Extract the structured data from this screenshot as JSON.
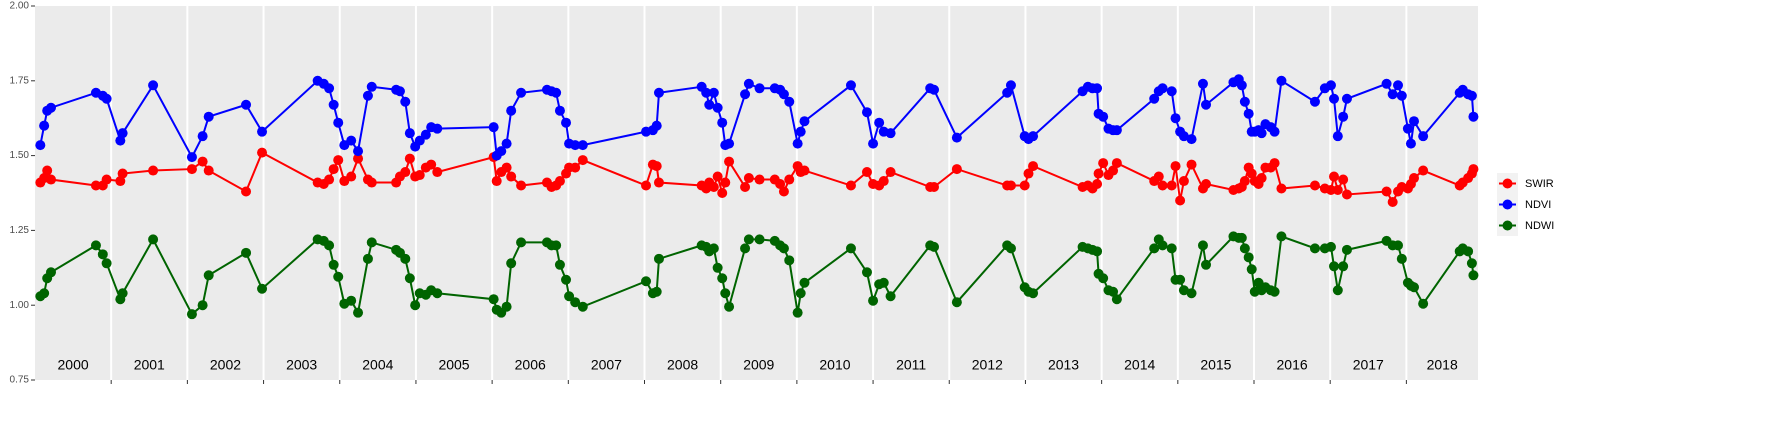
{
  "chart_data": {
    "type": "line",
    "x": [
      2000.07,
      2000.12,
      2000.16,
      2000.21,
      2000.8,
      2000.89,
      2000.94,
      2001.12,
      2001.15,
      2001.55,
      2002.06,
      2002.2,
      2002.28,
      2002.77,
      2002.98,
      2003.71,
      2003.79,
      2003.86,
      2003.92,
      2003.98,
      2004.06,
      2004.15,
      2004.24,
      2004.37,
      2004.42,
      2004.74,
      2004.79,
      2004.86,
      2004.92,
      2004.99,
      2005.05,
      2005.13,
      2005.2,
      2005.28,
      2006.02,
      2006.06,
      2006.12,
      2006.19,
      2006.25,
      2006.38,
      2006.72,
      2006.78,
      2006.84,
      2006.89,
      2006.97,
      2007.01,
      2007.09,
      2007.19,
      2008.02,
      2008.11,
      2008.16,
      2008.19,
      2008.75,
      2008.81,
      2008.85,
      2008.91,
      2008.96,
      2009.02,
      2009.06,
      2009.11,
      2009.32,
      2009.37,
      2009.51,
      2009.71,
      2009.78,
      2009.83,
      2009.9,
      2010.01,
      2010.05,
      2010.1,
      2010.71,
      2010.92,
      2011,
      2011.08,
      2011.14,
      2011.23,
      2011.75,
      2011.8,
      2012.1,
      2012.76,
      2012.81,
      2012.99,
      2013.04,
      2013.1,
      2013.75,
      2013.82,
      2013.88,
      2013.94,
      2013.96,
      2014.02,
      2014.09,
      2014.15,
      2014.2,
      2014.69,
      2014.75,
      2014.8,
      2014.92,
      2014.97,
      2015.03,
      2015.08,
      2015.18,
      2015.33,
      2015.37,
      2015.73,
      2015.8,
      2015.84,
      2015.88,
      2015.93,
      2015.97,
      2016.01,
      2016.06,
      2016.1,
      2016.15,
      2016.22,
      2016.27,
      2016.36,
      2016.8,
      2016.93,
      2017.01,
      2017.05,
      2017.1,
      2017.17,
      2017.22,
      2017.74,
      2017.82,
      2017.89,
      2017.94,
      2018.02,
      2018.06,
      2018.1,
      2018.22,
      2018.7,
      2018.74,
      2018.81,
      2018.86,
      2018.88
    ],
    "series": [
      {
        "name": "SWIR",
        "color": "#ff0000",
        "values": [
          1.41,
          1.425,
          1.45,
          1.42,
          1.4,
          1.4,
          1.42,
          1.415,
          1.44,
          1.45,
          1.455,
          1.48,
          1.45,
          1.38,
          1.51,
          1.41,
          1.405,
          1.42,
          1.455,
          1.485,
          1.415,
          1.43,
          1.49,
          1.42,
          1.41,
          1.41,
          1.43,
          1.445,
          1.49,
          1.43,
          1.435,
          1.46,
          1.47,
          1.445,
          1.495,
          1.415,
          1.445,
          1.46,
          1.43,
          1.4,
          1.41,
          1.395,
          1.4,
          1.415,
          1.44,
          1.46,
          1.46,
          1.485,
          1.4,
          1.47,
          1.465,
          1.41,
          1.4,
          1.39,
          1.41,
          1.395,
          1.43,
          1.375,
          1.41,
          1.48,
          1.395,
          1.425,
          1.42,
          1.42,
          1.405,
          1.38,
          1.42,
          1.465,
          1.445,
          1.45,
          1.4,
          1.445,
          1.405,
          1.4,
          1.415,
          1.445,
          1.395,
          1.395,
          1.455,
          1.4,
          1.4,
          1.4,
          1.44,
          1.465,
          1.395,
          1.4,
          1.39,
          1.405,
          1.44,
          1.475,
          1.435,
          1.45,
          1.475,
          1.415,
          1.43,
          1.4,
          1.4,
          1.465,
          1.35,
          1.415,
          1.47,
          1.39,
          1.405,
          1.385,
          1.39,
          1.395,
          1.415,
          1.46,
          1.44,
          1.415,
          1.405,
          1.425,
          1.46,
          1.46,
          1.475,
          1.39,
          1.4,
          1.39,
          1.385,
          1.43,
          1.385,
          1.42,
          1.37,
          1.38,
          1.345,
          1.38,
          1.395,
          1.39,
          1.405,
          1.425,
          1.45,
          1.4,
          1.41,
          1.425,
          1.44,
          1.455
        ]
      },
      {
        "name": "NDVI",
        "color": "#0000ff",
        "values": [
          1.535,
          1.6,
          1.65,
          1.66,
          1.71,
          1.7,
          1.69,
          1.55,
          1.575,
          1.735,
          1.495,
          1.565,
          1.63,
          1.67,
          1.58,
          1.75,
          1.74,
          1.725,
          1.67,
          1.61,
          1.535,
          1.55,
          1.515,
          1.7,
          1.73,
          1.72,
          1.715,
          1.68,
          1.575,
          1.53,
          1.55,
          1.57,
          1.595,
          1.59,
          1.595,
          1.5,
          1.515,
          1.54,
          1.65,
          1.71,
          1.72,
          1.715,
          1.71,
          1.65,
          1.61,
          1.54,
          1.535,
          1.535,
          1.58,
          1.585,
          1.6,
          1.71,
          1.73,
          1.71,
          1.67,
          1.71,
          1.66,
          1.61,
          1.535,
          1.54,
          1.705,
          1.74,
          1.725,
          1.725,
          1.72,
          1.705,
          1.68,
          1.54,
          1.58,
          1.615,
          1.735,
          1.645,
          1.54,
          1.61,
          1.58,
          1.575,
          1.725,
          1.72,
          1.56,
          1.71,
          1.735,
          1.565,
          1.555,
          1.565,
          1.715,
          1.73,
          1.725,
          1.725,
          1.64,
          1.63,
          1.59,
          1.585,
          1.585,
          1.69,
          1.715,
          1.725,
          1.715,
          1.625,
          1.58,
          1.565,
          1.555,
          1.74,
          1.67,
          1.745,
          1.755,
          1.735,
          1.68,
          1.64,
          1.58,
          1.58,
          1.585,
          1.575,
          1.605,
          1.595,
          1.58,
          1.75,
          1.68,
          1.725,
          1.735,
          1.69,
          1.565,
          1.63,
          1.69,
          1.74,
          1.705,
          1.735,
          1.7,
          1.59,
          1.54,
          1.615,
          1.565,
          1.71,
          1.72,
          1.705,
          1.7,
          1.63
        ]
      },
      {
        "name": "NDWI",
        "color": "#006400",
        "values": [
          1.03,
          1.04,
          1.09,
          1.11,
          1.2,
          1.17,
          1.14,
          1.02,
          1.04,
          1.22,
          0.97,
          1.0,
          1.1,
          1.175,
          1.055,
          1.22,
          1.215,
          1.2,
          1.135,
          1.095,
          1.005,
          1.015,
          0.975,
          1.155,
          1.21,
          1.185,
          1.175,
          1.155,
          1.09,
          1.0,
          1.04,
          1.035,
          1.05,
          1.04,
          1.02,
          0.985,
          0.975,
          0.995,
          1.14,
          1.21,
          1.21,
          1.2,
          1.2,
          1.135,
          1.085,
          1.03,
          1.01,
          0.995,
          1.08,
          1.04,
          1.045,
          1.155,
          1.2,
          1.195,
          1.18,
          1.19,
          1.125,
          1.09,
          1.04,
          0.995,
          1.19,
          1.22,
          1.22,
          1.215,
          1.2,
          1.19,
          1.15,
          0.975,
          1.04,
          1.075,
          1.19,
          1.11,
          1.015,
          1.07,
          1.075,
          1.03,
          1.2,
          1.195,
          1.01,
          1.2,
          1.19,
          1.06,
          1.045,
          1.04,
          1.195,
          1.19,
          1.185,
          1.18,
          1.105,
          1.09,
          1.05,
          1.045,
          1.02,
          1.19,
          1.22,
          1.2,
          1.19,
          1.085,
          1.085,
          1.05,
          1.04,
          1.2,
          1.135,
          1.23,
          1.225,
          1.225,
          1.19,
          1.16,
          1.12,
          1.045,
          1.075,
          1.05,
          1.06,
          1.05,
          1.045,
          1.23,
          1.19,
          1.19,
          1.195,
          1.13,
          1.05,
          1.13,
          1.185,
          1.215,
          1.2,
          1.2,
          1.155,
          1.075,
          1.065,
          1.06,
          1.005,
          1.18,
          1.19,
          1.18,
          1.14,
          1.1
        ]
      }
    ],
    "xlim": [
      2000,
      2018.94
    ],
    "xticks": [
      2001,
      2002,
      2003,
      2004,
      2005,
      2006,
      2007,
      2008,
      2009,
      2010,
      2011,
      2012,
      2013,
      2014,
      2015,
      2016,
      2017,
      2018
    ],
    "year_labels": [
      "2000",
      "2001",
      "2002",
      "2003",
      "2004",
      "2005",
      "2006",
      "2007",
      "2008",
      "2009",
      "2010",
      "2011",
      "2012",
      "2013",
      "2014",
      "2015",
      "2016",
      "2017",
      "2018"
    ],
    "ylim": [
      0.75,
      2.0
    ],
    "yticks": [
      {
        "value": 0.75,
        "label": "0.75"
      },
      {
        "value": 1.0,
        "label": "1.00"
      },
      {
        "value": 1.25,
        "label": "1.25"
      },
      {
        "value": 1.5,
        "label": "1.50"
      },
      {
        "value": 1.75,
        "label": "1.75"
      },
      {
        "value": 2.0,
        "label": "2.00"
      }
    ],
    "grid": "x",
    "legend": "right"
  }
}
